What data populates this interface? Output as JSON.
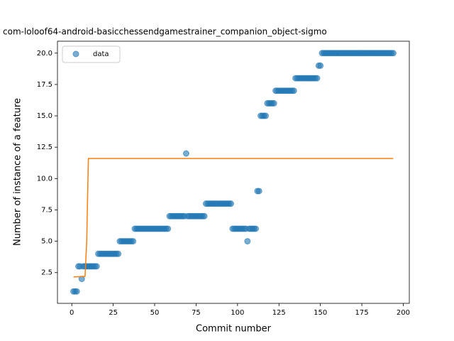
{
  "chart_data": {
    "type": "scatter",
    "title": "com-loloof64-android-basicchessendgamestrainer_companion_object-sigmo",
    "xlabel": "Commit number",
    "ylabel": "Number of instance of a feature",
    "legend": "upper left",
    "xlim": [
      -8.65,
      203.65
    ],
    "ylim": [
      0.05,
      20.95
    ],
    "xticks": [
      0,
      25,
      50,
      75,
      100,
      125,
      150,
      175,
      200
    ],
    "yticks": [
      2.5,
      {
        "value": 5,
        "label": "5.0"
      },
      7.5,
      {
        "value": 10,
        "label": "10.0"
      },
      12.5,
      {
        "value": 15,
        "label": "15.0"
      },
      17.5,
      {
        "value": 20,
        "label": "20.0"
      }
    ],
    "series": [
      {
        "name": "data",
        "type": "scatter",
        "color": "#1f77b4",
        "x": [
          1,
          2,
          3,
          4,
          5,
          6,
          7,
          8,
          9,
          10,
          11,
          12,
          13,
          14,
          15,
          16,
          17,
          18,
          19,
          20,
          21,
          22,
          23,
          24,
          25,
          26,
          27,
          28,
          29,
          30,
          31,
          32,
          33,
          34,
          35,
          36,
          37,
          38,
          39,
          40,
          41,
          42,
          43,
          44,
          45,
          46,
          47,
          48,
          49,
          50,
          51,
          52,
          53,
          54,
          55,
          56,
          57,
          58,
          59,
          60,
          61,
          62,
          63,
          64,
          65,
          66,
          67,
          68,
          69,
          70,
          71,
          72,
          73,
          74,
          75,
          76,
          77,
          78,
          79,
          80,
          81,
          82,
          83,
          84,
          85,
          86,
          87,
          88,
          89,
          90,
          91,
          92,
          93,
          94,
          95,
          96,
          97,
          98,
          99,
          100,
          101,
          102,
          103,
          104,
          105,
          106,
          107,
          108,
          109,
          110,
          111,
          112,
          113,
          114,
          115,
          116,
          117,
          118,
          119,
          120,
          121,
          122,
          123,
          124,
          125,
          126,
          127,
          128,
          129,
          130,
          131,
          132,
          133,
          134,
          135,
          136,
          137,
          138,
          139,
          140,
          141,
          142,
          143,
          144,
          145,
          146,
          147,
          148,
          149,
          150,
          151,
          152,
          153,
          154,
          155,
          156,
          157,
          158,
          159,
          160,
          161,
          162,
          163,
          164,
          165,
          166,
          167,
          168,
          169,
          170,
          171,
          172,
          173,
          174,
          175,
          176,
          177,
          178,
          179,
          180,
          181,
          182,
          183,
          184,
          185,
          186,
          187,
          188,
          189,
          190,
          191,
          192,
          193,
          194
        ],
        "values": [
          1,
          1,
          1,
          3,
          3,
          2,
          3,
          3,
          3,
          3,
          3,
          3,
          3,
          3,
          3,
          4,
          4,
          4,
          4,
          4,
          4,
          4,
          4,
          4,
          4,
          4,
          4,
          4,
          5,
          5,
          5,
          5,
          5,
          5,
          5,
          5,
          5,
          6,
          6,
          6,
          6,
          6,
          6,
          6,
          6,
          6,
          6,
          6,
          6,
          6,
          6,
          6,
          6,
          6,
          6,
          6,
          6,
          6,
          7,
          7,
          7,
          7,
          7,
          7,
          7,
          7,
          7,
          7,
          12,
          7,
          7,
          7,
          7,
          7,
          7,
          7,
          7,
          7,
          7,
          7,
          8,
          8,
          8,
          8,
          8,
          8,
          8,
          8,
          8,
          8,
          8,
          8,
          8,
          8,
          8,
          8,
          6,
          6,
          6,
          6,
          6,
          6,
          6,
          6,
          6,
          5,
          6,
          6,
          6,
          6,
          6,
          9,
          9,
          15,
          15,
          15,
          15,
          16,
          16,
          16,
          16,
          16,
          17,
          17,
          17,
          17,
          17,
          17,
          17,
          17,
          17,
          17,
          17,
          17,
          18,
          18,
          18,
          18,
          18,
          18,
          18,
          18,
          18,
          18,
          18,
          18,
          18,
          18,
          19,
          19,
          20,
          20,
          20,
          20,
          20,
          20,
          20,
          20,
          20,
          20,
          20,
          20,
          20,
          20,
          20,
          20,
          20,
          20,
          20,
          20,
          20,
          20,
          20,
          20,
          20,
          20,
          20,
          20,
          20,
          20,
          20,
          20,
          20,
          20,
          20,
          20,
          20,
          20,
          20,
          20,
          20,
          20,
          20,
          20
        ]
      },
      {
        "type": "line",
        "color": "#ff7f0e",
        "x": [
          1,
          8,
          9,
          10,
          194
        ],
        "values": [
          2.15,
          2.2,
          5,
          11.6,
          11.6
        ]
      }
    ]
  }
}
